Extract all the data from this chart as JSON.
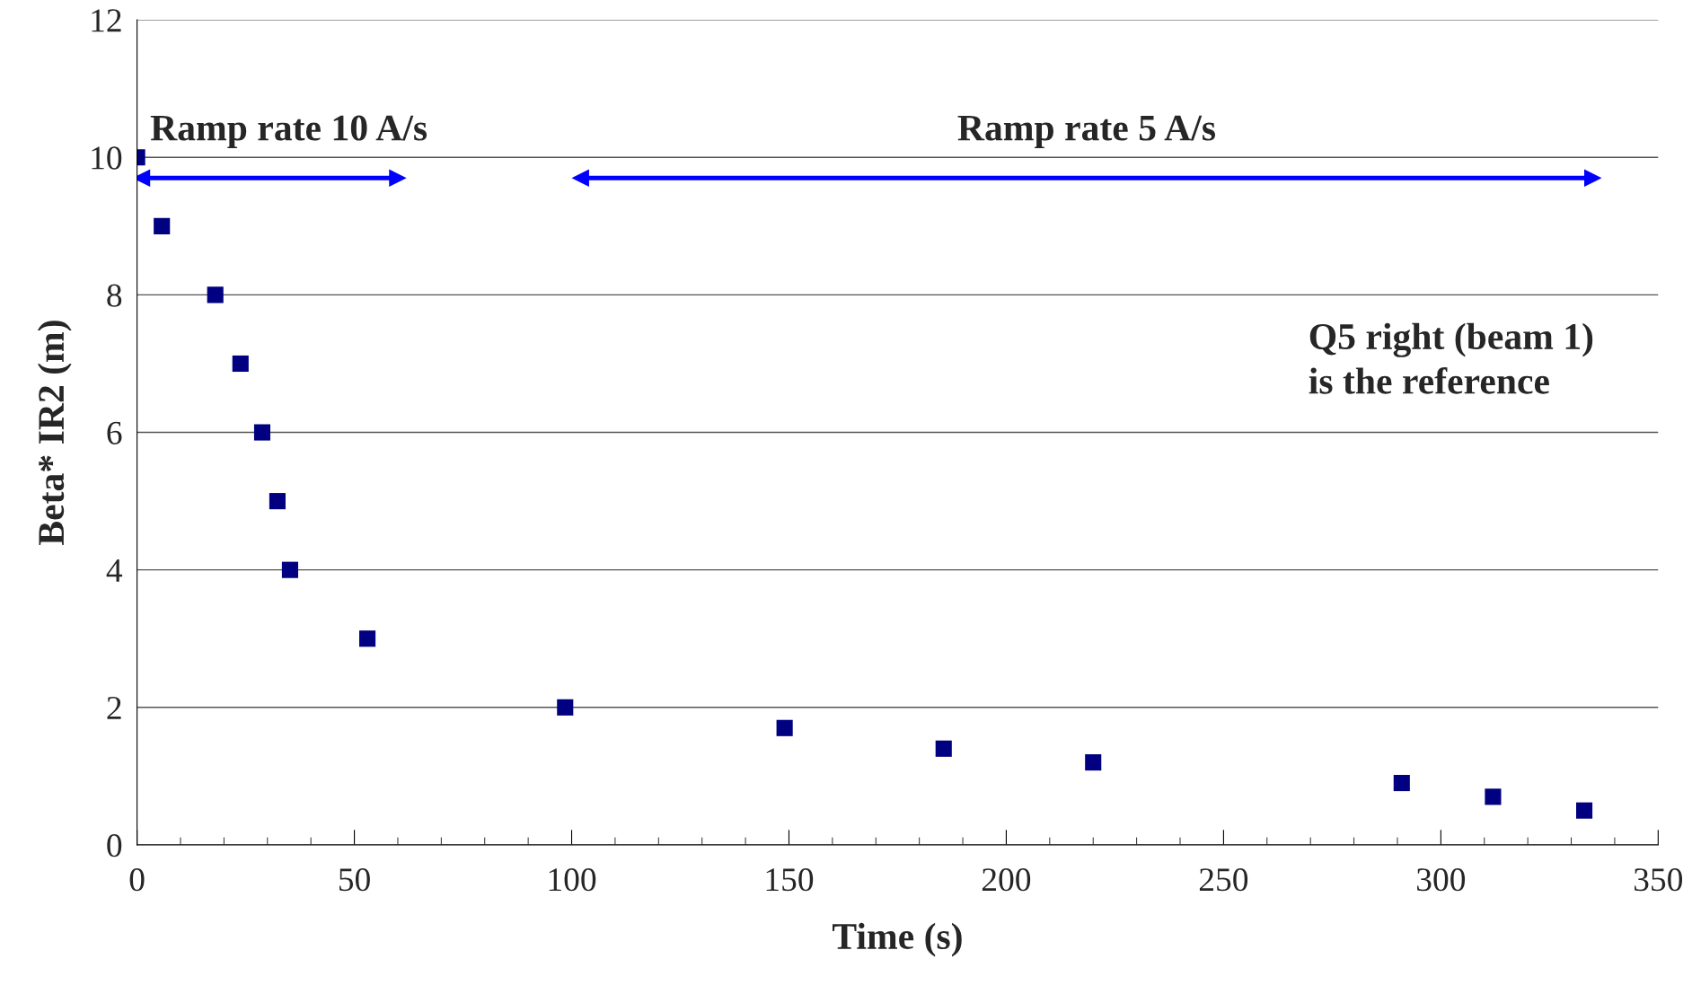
{
  "chart_data": {
    "type": "scatter",
    "xlabel": "Time (s)",
    "ylabel": "Beta* IR2 (m)",
    "x": [
      0,
      5.7,
      18,
      23.8,
      28.8,
      32.3,
      35.2,
      53,
      98.5,
      149,
      185.6,
      220,
      291,
      312,
      333
    ],
    "series": [
      {
        "color": "#000080",
        "values": [
          10,
          9,
          8,
          7,
          6,
          5,
          4,
          3,
          2,
          1.7,
          1.4,
          1.2,
          0.9,
          0.7,
          0.5
        ]
      },
      {
        "type": "line",
        "marker": "triangle",
        "color": "#0000ff",
        "x": [
          1,
          60
        ],
        "values": [
          9.7,
          9.7
        ]
      },
      {
        "type": "line",
        "marker": "triangle",
        "color": "#0000ff",
        "x": [
          102,
          335
        ],
        "values": [
          9.7,
          9.7
        ]
      }
    ],
    "xlim": [
      0,
      350
    ],
    "xticks": [
      0,
      50,
      100,
      150,
      200,
      250,
      300,
      350
    ],
    "ylim": [
      0,
      12
    ],
    "yticks": [
      0,
      2,
      4,
      6,
      8,
      10,
      12
    ],
    "grid": "y",
    "marker": "square",
    "legend": false,
    "annotations": [
      "Ramp rate 10 A/s",
      "Ramp rate 5 A/s",
      "Q5 right (beam 1)\nis the reference"
    ]
  }
}
